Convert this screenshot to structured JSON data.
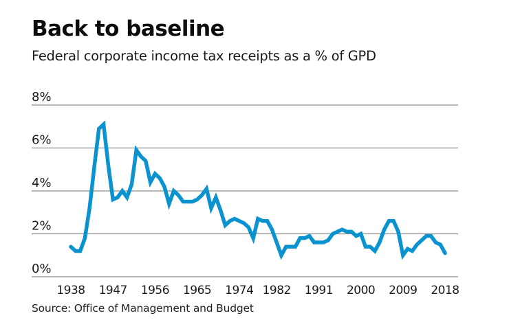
{
  "header": {
    "title": "Back to baseline",
    "subtitle": "Federal corporate income tax receipts as a % of GPD"
  },
  "footer": {
    "source": "Source: Office of Management and Budget"
  },
  "colors": {
    "line": "#0b93d0",
    "grid": "#8a8a8a",
    "text": "#111111"
  },
  "chart_data": {
    "type": "line",
    "title": "Back to baseline",
    "subtitle": "Federal corporate income tax receipts as a % of GPD",
    "xlabel": "",
    "ylabel": "",
    "ylim": [
      0,
      8
    ],
    "xlim": [
      1938,
      2018
    ],
    "grid": true,
    "legend": "none",
    "yticks": [
      0,
      2,
      4,
      6,
      8
    ],
    "ytick_labels": [
      "0%",
      "2%",
      "4%",
      "6%",
      "8%"
    ],
    "xticks": [
      1938,
      1947,
      1956,
      1965,
      1974,
      1982,
      1991,
      2000,
      2009,
      2018
    ],
    "xtick_labels": [
      "1938",
      "1947",
      "1956",
      "1965",
      "1974",
      "1982",
      "1991",
      "2000",
      "2009",
      "2018"
    ],
    "series": [
      {
        "name": "Corporate income tax receipts (% of GDP)",
        "x": [
          1938,
          1939,
          1940,
          1941,
          1942,
          1943,
          1944,
          1945,
          1946,
          1947,
          1948,
          1949,
          1950,
          1951,
          1952,
          1953,
          1954,
          1955,
          1956,
          1957,
          1958,
          1959,
          1960,
          1961,
          1962,
          1963,
          1964,
          1965,
          1966,
          1967,
          1968,
          1969,
          1970,
          1971,
          1972,
          1973,
          1974,
          1975,
          1976,
          1977,
          1978,
          1979,
          1980,
          1981,
          1982,
          1983,
          1984,
          1985,
          1986,
          1987,
          1988,
          1989,
          1990,
          1991,
          1992,
          1993,
          1994,
          1995,
          1996,
          1997,
          1998,
          1999,
          2000,
          2001,
          2002,
          2003,
          2004,
          2005,
          2006,
          2007,
          2008,
          2009,
          2010,
          2011,
          2012,
          2013,
          2014,
          2015,
          2016,
          2017,
          2018
        ],
        "values": [
          1.4,
          1.2,
          1.2,
          1.8,
          3.2,
          5.1,
          6.9,
          7.1,
          5.2,
          3.6,
          3.7,
          4.0,
          3.7,
          4.3,
          5.9,
          5.6,
          5.4,
          4.4,
          4.8,
          4.6,
          4.2,
          3.4,
          4.0,
          3.8,
          3.5,
          3.5,
          3.5,
          3.6,
          3.8,
          4.1,
          3.2,
          3.7,
          3.1,
          2.4,
          2.6,
          2.7,
          2.6,
          2.5,
          2.3,
          1.8,
          2.7,
          2.6,
          2.6,
          2.2,
          1.6,
          1.0,
          1.4,
          1.4,
          1.4,
          1.8,
          1.8,
          1.9,
          1.6,
          1.6,
          1.6,
          1.7,
          2.0,
          2.1,
          2.2,
          2.1,
          2.1,
          1.9,
          2.0,
          1.4,
          1.4,
          1.2,
          1.6,
          2.2,
          2.6,
          2.6,
          2.1,
          1.0,
          1.3,
          1.2,
          1.5,
          1.7,
          1.9,
          1.9,
          1.6,
          1.5,
          1.1
        ]
      }
    ]
  }
}
